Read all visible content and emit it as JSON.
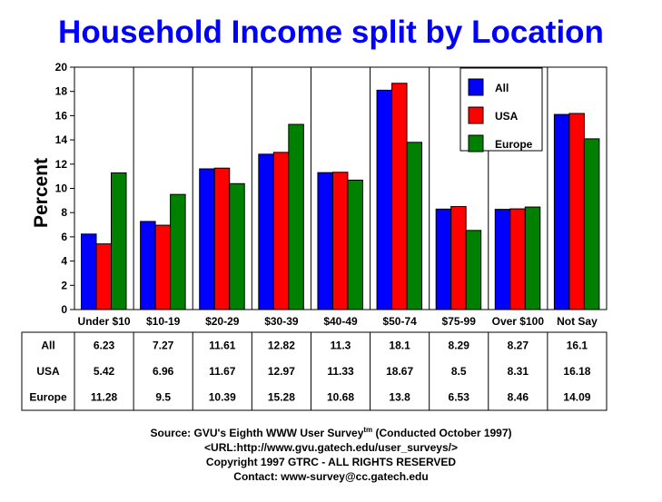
{
  "title": "Household Income split by Location",
  "chart_data": {
    "type": "bar",
    "title": "Household Income split by Location",
    "xlabel": "",
    "ylabel": "Percent",
    "ylim": [
      0,
      20
    ],
    "yticks": [
      0,
      2,
      4,
      6,
      8,
      10,
      12,
      14,
      16,
      18,
      20
    ],
    "grid": "vertical separators",
    "legend": "top-right",
    "categories": [
      "Under $10",
      "$10-19",
      "$20-29",
      "$30-39",
      "$40-49",
      "$50-74",
      "$75-99",
      "Over $100",
      "Not Say"
    ],
    "series": [
      {
        "name": "All",
        "color": "#0000ff",
        "values": [
          6.23,
          7.27,
          11.61,
          12.82,
          11.3,
          18.1,
          8.29,
          8.27,
          16.1
        ]
      },
      {
        "name": "USA",
        "color": "#ff0000",
        "values": [
          5.42,
          6.96,
          11.67,
          12.97,
          11.33,
          18.67,
          8.5,
          8.31,
          16.18
        ]
      },
      {
        "name": "Europe",
        "color": "#008000",
        "values": [
          11.28,
          9.5,
          10.39,
          15.28,
          10.68,
          13.8,
          6.53,
          8.46,
          14.09
        ]
      }
    ],
    "table_labels": {
      "All": [
        "6.23",
        "7.27",
        "11.61",
        "12.82",
        "11.3",
        "18.1",
        "8.29",
        "8.27",
        "16.1"
      ],
      "USA": [
        "5.42",
        "6.96",
        "11.67",
        "12.97",
        "11.33",
        "18.67",
        "8.5",
        "8.31",
        "16.18"
      ],
      "Europe": [
        "11.28",
        "9.5",
        "10.39",
        "15.28",
        "10.68",
        "13.8",
        "6.53",
        "8.46",
        "14.09"
      ]
    }
  },
  "footer": {
    "source_prefix": "Source: GVU's Eighth WWW User Survey",
    "source_tm": "tm",
    "source_suffix": " (Conducted October 1997)",
    "url": "<URL:http://www.gvu.gatech.edu/user_surveys/>",
    "copyright": "Copyright 1997 GTRC - ALL RIGHTS RESERVED",
    "contact": "Contact: www-survey@cc.gatech.edu"
  }
}
